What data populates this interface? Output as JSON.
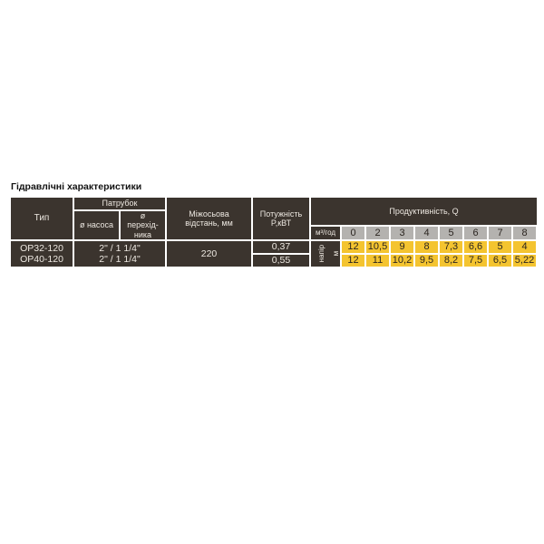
{
  "title": "Гідравлічні характеристики",
  "headers": {
    "type": "Тип",
    "nozzle": "Патрубок",
    "pump_dia": "ø насоса",
    "adapter_dia": "ø перехід-ника",
    "axis_distance": "Міжосьова відстань, мм",
    "power": "Потужність P,кВТ",
    "productivity": "Продуктивність, Q",
    "flow_unit": "м³/год",
    "head_label": "напір",
    "head_unit": "м"
  },
  "flow_values": [
    "0",
    "2",
    "3",
    "4",
    "5",
    "6",
    "7",
    "8"
  ],
  "rows": [
    {
      "type": "OP32-120",
      "nozzle": "2\" / 1 1/4\"",
      "power": "0,37",
      "head": [
        "12",
        "10,5",
        "9",
        "8",
        "7,3",
        "6,6",
        "5",
        "4"
      ]
    },
    {
      "type": "OP40-120",
      "nozzle": "2\" / 1 1/4\"",
      "power": "0,55",
      "head": [
        "12",
        "11",
        "10,2",
        "9,5",
        "8,2",
        "7,5",
        "6,5",
        "5,22"
      ]
    }
  ],
  "axis_distance_value": "220",
  "colors": {
    "dark": "#3b342e",
    "grey": "#b4b2af",
    "yellow": "#f4c430"
  }
}
